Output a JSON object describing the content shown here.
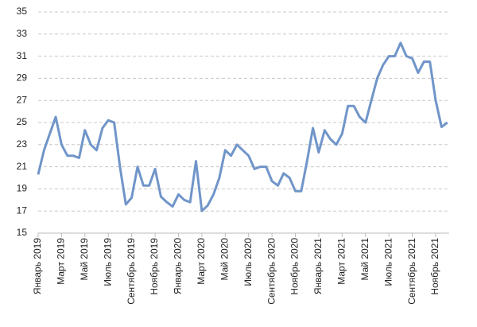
{
  "chart_data": {
    "type": "line",
    "categories": [
      "Январь 2019",
      null,
      null,
      null,
      "Март 2019",
      null,
      null,
      null,
      "Май 2019",
      null,
      null,
      null,
      "Июль 2019",
      null,
      null,
      null,
      "Сентябрь 2019",
      null,
      null,
      null,
      "Ноябрь 2019",
      null,
      null,
      null,
      "Январь 2020",
      null,
      null,
      null,
      "Март 2020",
      null,
      null,
      null,
      "Май 2020",
      null,
      null,
      null,
      "Июль 2020",
      null,
      null,
      null,
      "Сентябрь 2020",
      null,
      null,
      null,
      "Ноябрь 2020",
      null,
      null,
      null,
      "Январь 2021",
      null,
      null,
      null,
      "Март 2021",
      null,
      null,
      null,
      "Май 2021",
      null,
      null,
      null,
      "Июль 2021",
      null,
      null,
      null,
      "Сентябрь 2021",
      null,
      null,
      null,
      "Ноябрь 2021",
      null,
      null
    ],
    "values": [
      20.3,
      22.5,
      24,
      25.5,
      23,
      22,
      22,
      21.8,
      24.3,
      23,
      22.5,
      24.5,
      25.2,
      25,
      21,
      17.6,
      18.2,
      21,
      19.3,
      19.3,
      20.8,
      18.3,
      17.8,
      17.4,
      18.5,
      18,
      17.8,
      21.5,
      17,
      17.5,
      18.5,
      20,
      22.5,
      22,
      23,
      22.5,
      22,
      20.8,
      21,
      21,
      19.7,
      19.3,
      20.4,
      20,
      18.8,
      18.8,
      21.5,
      24.5,
      22.3,
      24.3,
      23.5,
      23,
      24,
      26.5,
      26.5,
      25.5,
      25,
      27,
      29,
      30.2,
      31,
      31,
      32.2,
      31,
      30.8,
      29.5,
      30.5,
      30.5,
      27,
      24.6,
      25
    ],
    "color": "#7095c9",
    "ylim": [
      15,
      35
    ],
    "yticks": [
      15,
      17,
      19,
      21,
      23,
      25,
      27,
      29,
      31,
      33,
      35
    ],
    "grid": true
  }
}
